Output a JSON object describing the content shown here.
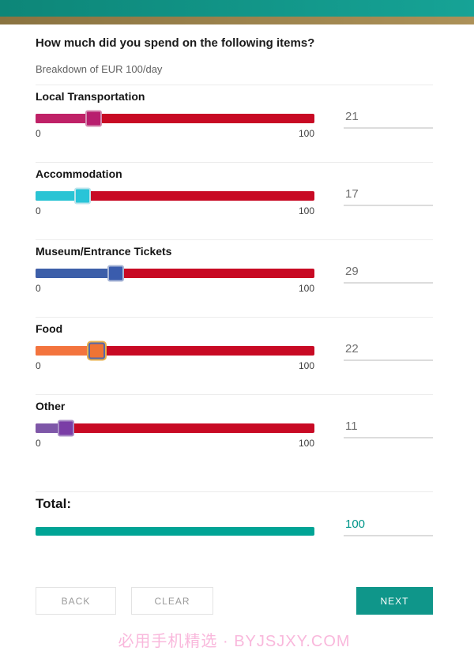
{
  "header": {
    "teal_color": "#0d8678",
    "teal_color_light": "#16a396",
    "gold_color": "#8a7340",
    "gold_color_light": "#ac9158"
  },
  "form": {
    "title": "How much did you spend on the following items?",
    "subtitle": "Breakdown of EUR 100/day",
    "slider_min_label": "0",
    "slider_max_label": "100",
    "slider_max": 100,
    "remainder_color": "#c80a24",
    "items": [
      {
        "label": "Local Transportation",
        "value": 21,
        "color": "#bf2167",
        "thumb_fill": "#b81e6e",
        "thumb_border": "#d48bb0"
      },
      {
        "label": "Accommodation",
        "value": 17,
        "color": "#2ac4d4",
        "thumb_fill": "#29c4d8",
        "thumb_border": "#bde4ec"
      },
      {
        "label": "Museum/Entrance Tickets",
        "value": 29,
        "color": "#3d5fa9",
        "thumb_fill": "#3a5cad",
        "thumb_border": "#a8b6d6"
      },
      {
        "label": "Food",
        "value": 22,
        "color": "#f3743e",
        "thumb_fill": "#ef7434",
        "thumb_border": "#5568a8",
        "thumb_outline": "#e8b04a"
      },
      {
        "label": "Other",
        "value": 11,
        "color": "#7e57a8",
        "thumb_fill": "#7a3da6",
        "thumb_border": "#a88cc6"
      }
    ],
    "total": {
      "label": "Total:",
      "value": 100,
      "bar_color": "#00a495",
      "value_color": "#00968a"
    }
  },
  "buttons": {
    "back": "BACK",
    "clear": "CLEAR",
    "next": "NEXT",
    "next_color": "#0f968a"
  },
  "watermark": "必用手机精选 · BYJSJXY.COM"
}
